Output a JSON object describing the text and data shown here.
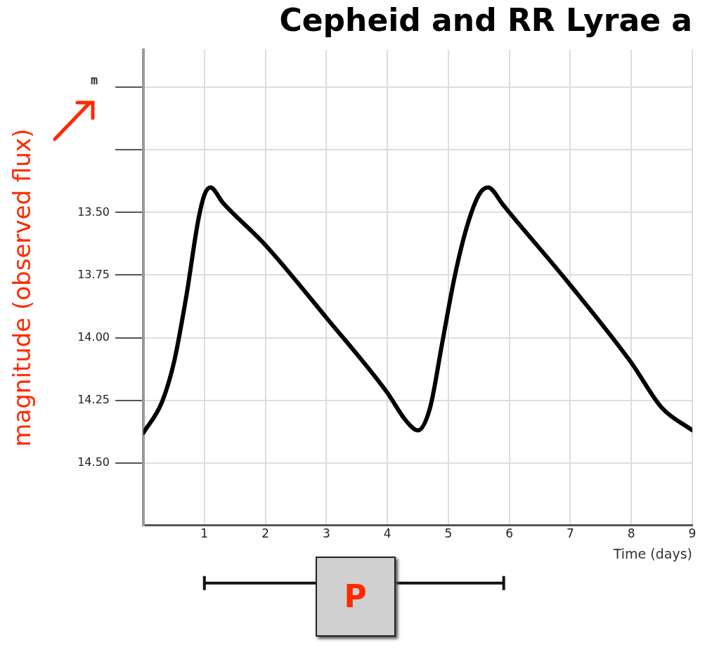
{
  "chart_data": {
    "type": "line",
    "title": "Cepheid and RR Lyrae a",
    "xlabel": "Time (days)",
    "ylabel": "magnitude (observed flux)",
    "annotations": [
      "m",
      "P"
    ],
    "x": [
      0,
      0.3,
      0.5,
      0.7,
      0.9,
      1.0,
      1.1,
      1.3,
      2,
      3,
      4,
      4.3,
      4.5,
      4.7,
      4.9,
      5.1,
      5.3,
      5.5,
      5.65,
      5.9,
      6,
      7,
      8,
      8.5,
      9
    ],
    "series": [
      {
        "color": "#000000",
        "values": [
          14.38,
          14.26,
          14.1,
          13.84,
          13.53,
          13.43,
          13.4,
          13.46,
          13.63,
          13.92,
          14.22,
          14.33,
          14.37,
          14.28,
          14.02,
          13.76,
          13.56,
          13.43,
          13.4,
          13.47,
          13.5,
          13.79,
          14.1,
          14.28,
          14.37
        ]
      }
    ],
    "xlim": [
      0,
      9
    ],
    "xticks": [
      1,
      2,
      3,
      4,
      5,
      6,
      7,
      8,
      9
    ],
    "ylim": [
      14.75,
      12.85
    ],
    "yticks": [
      {
        "value": 13.0,
        "label": null
      },
      {
        "value": 13.25,
        "label": null
      },
      {
        "value": 13.5,
        "label": "13.50"
      },
      {
        "value": 13.75,
        "label": "13.75"
      },
      {
        "value": 14.0,
        "label": "14.00"
      },
      {
        "value": 14.25,
        "label": "14.25"
      },
      {
        "value": 14.5,
        "label": "14.50"
      }
    ],
    "grid": true,
    "legend": false,
    "marker": "none",
    "line_style": "solid"
  }
}
